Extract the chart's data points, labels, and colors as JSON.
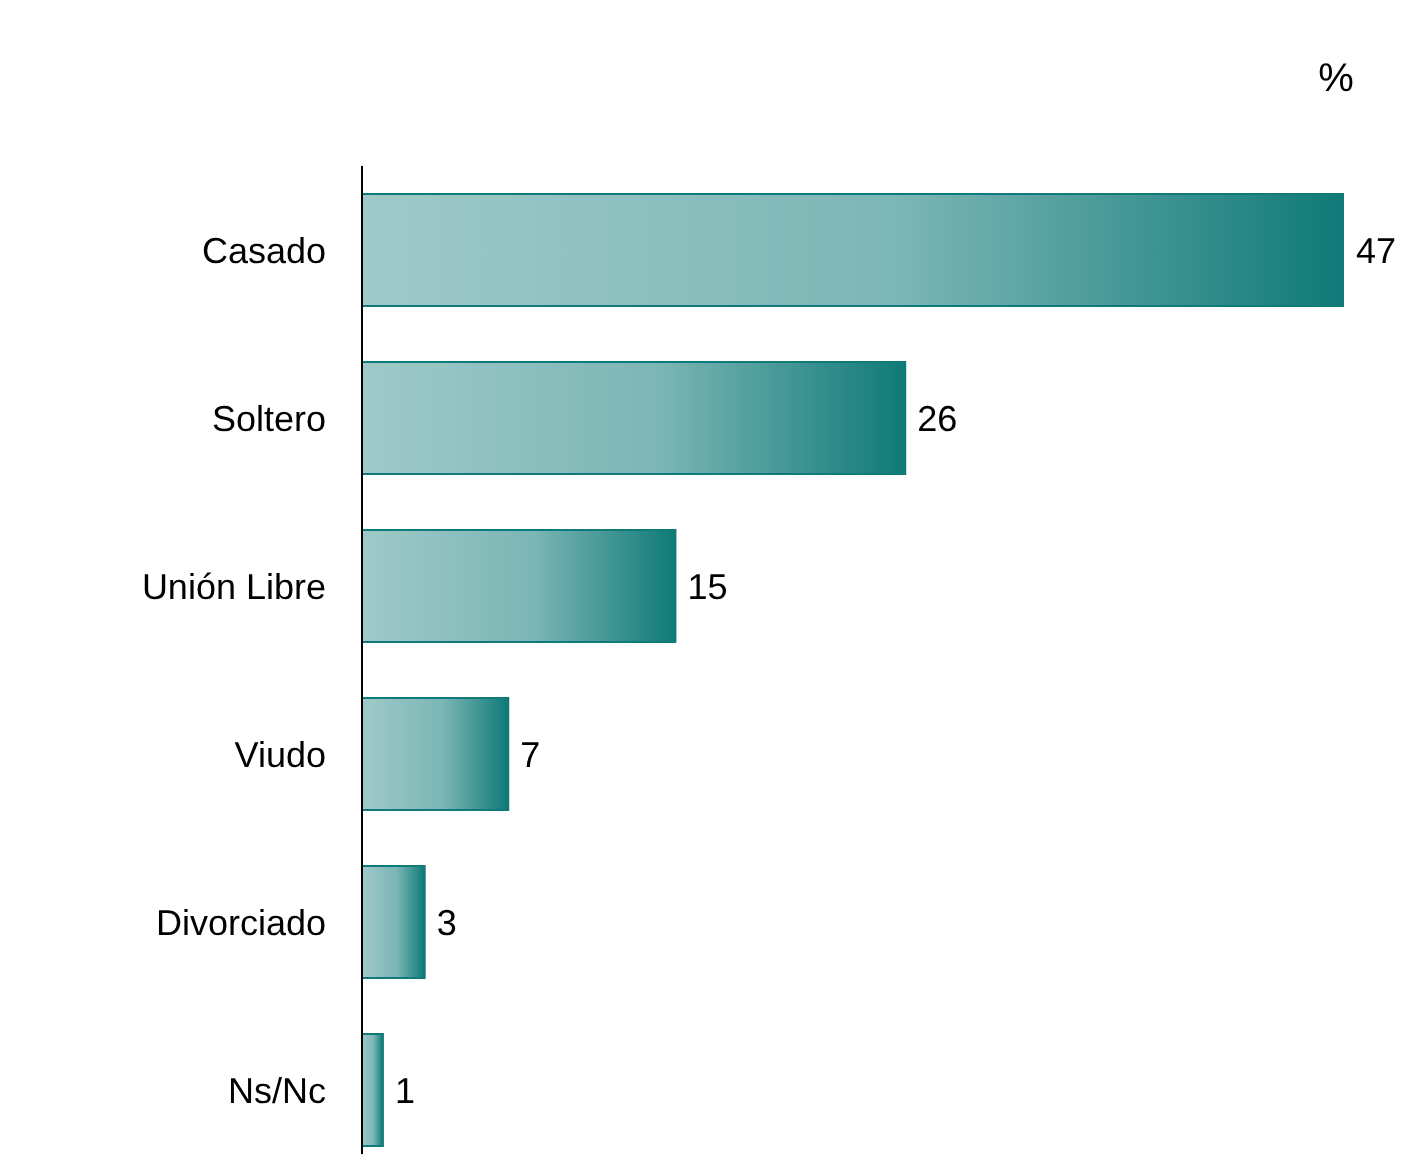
{
  "chart_data": {
    "type": "bar",
    "orientation": "horizontal",
    "xlabel": "%",
    "categories": [
      "Casado",
      "Soltero",
      "Unión Libre",
      "Viudo",
      "Divorciado",
      "Ns/Nc"
    ],
    "values": [
      47,
      26,
      15,
      7,
      3,
      1
    ],
    "color": "#0f7a78",
    "xlim": [
      0,
      47
    ],
    "data_labels": true,
    "grid": false,
    "legend": false
  }
}
